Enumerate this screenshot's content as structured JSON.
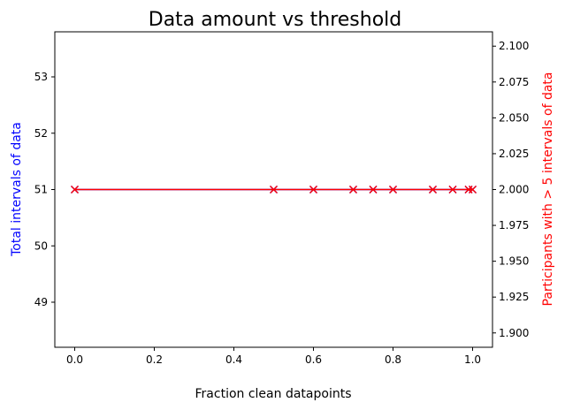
{
  "chart_data": {
    "type": "line",
    "title": "Data amount vs threshold",
    "xlabel": "Fraction clean datapoints",
    "ylabel_left": "Total intervals of data",
    "ylabel_right": "Participants with > 5 intervals of data",
    "xlim": [
      -0.05,
      1.05
    ],
    "ylim_left": [
      48.2,
      53.8
    ],
    "ylim_right": [
      1.89,
      2.11
    ],
    "x_ticks": [
      "0.0",
      "0.2",
      "0.4",
      "0.6",
      "0.8",
      "1.0"
    ],
    "y_left_ticks": [
      "49",
      "50",
      "51",
      "52",
      "53"
    ],
    "y_right_ticks": [
      "1.900",
      "1.925",
      "1.950",
      "1.975",
      "2.000",
      "2.025",
      "2.050",
      "2.075",
      "2.100"
    ],
    "grid": false,
    "series": [
      {
        "axis": "left",
        "color": "#0000ff",
        "marker": "x",
        "x": [
          0.0,
          0.5,
          0.6,
          0.7,
          0.75,
          0.8,
          0.9,
          0.95,
          0.99,
          1.0
        ],
        "values": [
          51,
          51,
          51,
          51,
          51,
          51,
          51,
          51,
          51,
          51
        ]
      },
      {
        "axis": "right",
        "color": "#ff0000",
        "marker": "x",
        "x": [
          0.0,
          0.5,
          0.6,
          0.7,
          0.75,
          0.8,
          0.9,
          0.95,
          0.99,
          1.0
        ],
        "values": [
          2.0,
          2.0,
          2.0,
          2.0,
          2.0,
          2.0,
          2.0,
          2.0,
          2.0,
          2.0
        ]
      }
    ],
    "colors": {
      "left_label": "#0000ff",
      "right_label": "#ff0000",
      "axis": "#000000"
    }
  }
}
